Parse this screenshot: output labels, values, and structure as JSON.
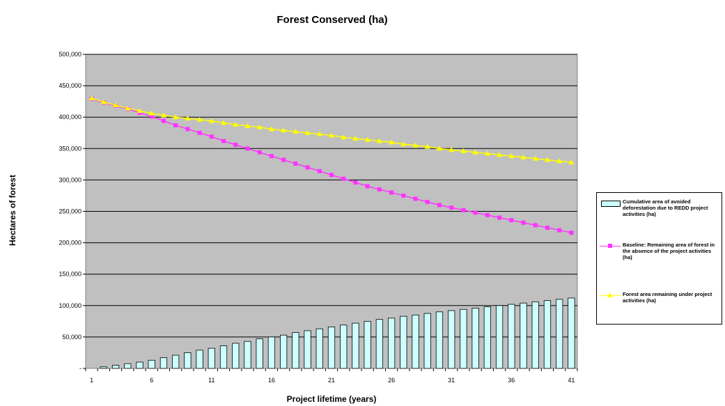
{
  "chart_data": {
    "type": "bar+line",
    "title": "Forest Conserved (ha)",
    "xlabel": "Project lifetime (years)",
    "ylabel": "Hectares of forest",
    "ylim": [
      0,
      500000
    ],
    "y_ticks": [
      0,
      50000,
      100000,
      150000,
      200000,
      250000,
      300000,
      350000,
      400000,
      450000,
      500000
    ],
    "y_tick_labels": [
      "-",
      "50,000",
      "100,000",
      "150,000",
      "200,000",
      "250,000",
      "300,000",
      "350,000",
      "400,000",
      "450,000",
      "500,000"
    ],
    "x_tick_labels": [
      "1",
      "6",
      "11",
      "16",
      "21",
      "26",
      "31",
      "36",
      "41"
    ],
    "x_tick_positions": [
      1,
      6,
      11,
      16,
      21,
      26,
      31,
      36,
      41
    ],
    "x_range": [
      1,
      41
    ],
    "grid": true,
    "legend_position": "right",
    "plot_background": "#c0c0c0",
    "series": [
      {
        "name": "Cumulative area of avoided deforestation due to REDD project activities (ha)",
        "type": "bar",
        "color": "#ccffff",
        "edge_color": "#000000",
        "values": [
          0,
          2500,
          5000,
          7500,
          10000,
          13000,
          17000,
          21000,
          25000,
          29000,
          32000,
          36000,
          40000,
          43000,
          47000,
          50000,
          53000,
          57000,
          60000,
          63000,
          66000,
          69000,
          72000,
          75000,
          78000,
          80000,
          83000,
          85000,
          87500,
          90000,
          92000,
          94000,
          96000,
          98000,
          100000,
          102000,
          104000,
          106000,
          108000,
          110000,
          112000
        ]
      },
      {
        "name": "Baseline: Remaining area of forest in the absence of the project activities (ha)",
        "type": "line",
        "color": "#ff33ff",
        "marker": "square",
        "values": [
          429000,
          423000,
          418000,
          413000,
          407000,
          401000,
          394000,
          387000,
          381000,
          375000,
          369000,
          362000,
          356000,
          350000,
          344000,
          338000,
          332000,
          326000,
          320000,
          314000,
          308000,
          302000,
          296000,
          290000,
          285000,
          280000,
          275000,
          270000,
          265000,
          260000,
          256000,
          252000,
          248000,
          244000,
          240000,
          236000,
          232000,
          228000,
          224000,
          220000,
          216000
        ]
      },
      {
        "name": "Forest area remaining under project activities (ha)",
        "type": "line",
        "color": "#ffff00",
        "marker": "triangle",
        "values": [
          430000,
          424000,
          419000,
          414000,
          410000,
          406000,
          403000,
          400000,
          398000,
          396000,
          394000,
          391000,
          388000,
          386000,
          384000,
          381000,
          379000,
          377000,
          375000,
          373000,
          371000,
          368000,
          366000,
          364000,
          362000,
          360000,
          357000,
          355000,
          353000,
          350000,
          348000,
          346000,
          344000,
          342000,
          340000,
          338000,
          336000,
          334000,
          332000,
          330000,
          328000
        ]
      }
    ],
    "legend_entries": [
      "Cumulative area of avoided deforestation due to REDD project activities (ha)",
      "Baseline: Remaining area of forest in the absence of the project activities (ha)",
      "Forest area remaining under project activities (ha)"
    ]
  }
}
